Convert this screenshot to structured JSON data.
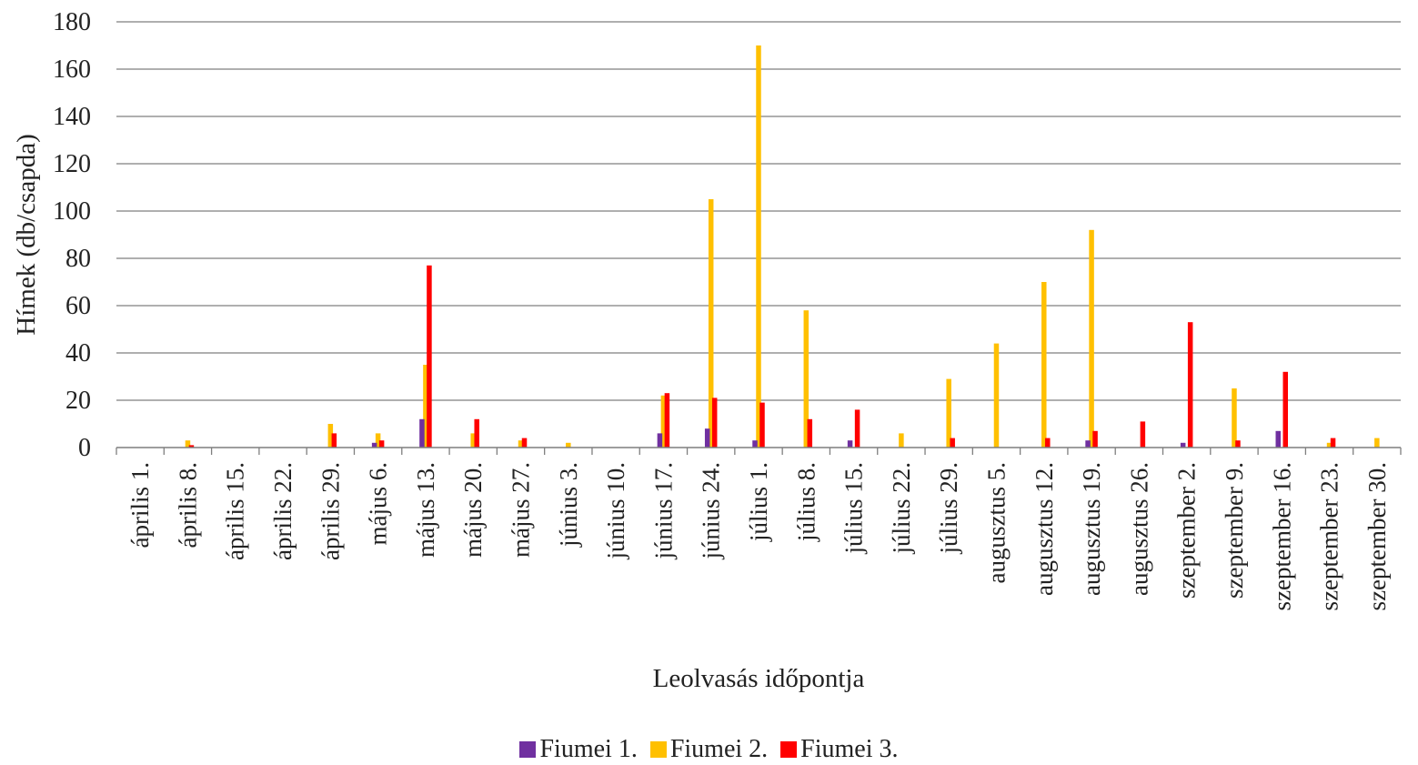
{
  "chart_data": {
    "type": "bar",
    "title": "",
    "ylabel": "Hímek (db/csapda)",
    "xlabel": "Leolvasás időpontja",
    "ylim": [
      0,
      180
    ],
    "yticks": [
      "0",
      "20",
      "40",
      "60",
      "80",
      "100",
      "120",
      "140",
      "160",
      "180"
    ],
    "grid": true,
    "legend_position": "bottom",
    "categories": [
      "április 1.",
      "április 8.",
      "április 15.",
      "április 22.",
      "április 29.",
      "május 6.",
      "május 13.",
      "május 20.",
      "május 27.",
      "június 3.",
      "június 10.",
      "június 17.",
      "június 24.",
      "július 1.",
      "július 8.",
      "július 15.",
      "július 22.",
      "július 29.",
      "augusztus 5.",
      "augusztus 12.",
      "augusztus 19.",
      "augusztus 26.",
      "szeptember 2.",
      "szeptember 9.",
      "szeptember 16.",
      "szeptember 23.",
      "szeptember 30."
    ],
    "series": [
      {
        "name": "Fiumei 1.",
        "color": "#7030a0",
        "values": [
          0,
          0,
          0,
          0,
          0,
          2,
          12,
          0,
          0,
          0,
          0,
          6,
          8,
          3,
          0,
          3,
          0,
          0,
          0,
          0,
          3,
          0,
          2,
          0,
          7,
          0,
          0
        ]
      },
      {
        "name": "Fiumei 2.",
        "color": "#ffc000",
        "values": [
          0,
          3,
          0,
          0,
          10,
          6,
          35,
          6,
          3,
          2,
          0,
          22,
          105,
          170,
          58,
          0,
          6,
          29,
          44,
          70,
          92,
          0,
          0,
          25,
          0,
          2,
          4
        ]
      },
      {
        "name": "Fiumei 3.",
        "color": "#ff0000",
        "values": [
          0,
          1,
          0,
          0,
          6,
          3,
          77,
          12,
          4,
          0,
          0,
          23,
          21,
          19,
          12,
          16,
          0,
          4,
          0,
          4,
          7,
          11,
          53,
          3,
          32,
          4,
          0
        ]
      }
    ]
  }
}
